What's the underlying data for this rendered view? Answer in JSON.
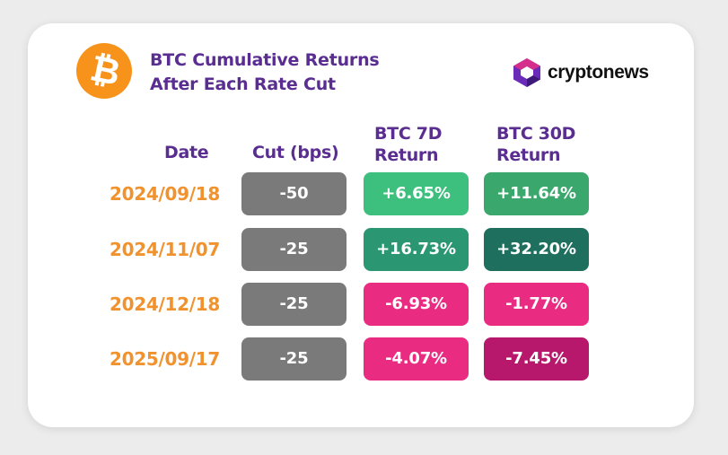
{
  "header": {
    "title_line1": "BTC Cumulative Returns",
    "title_line2": "After Each Rate Cut",
    "logo_icon": "bitcoin-icon",
    "brand_name": "cryptonews",
    "brand_icon": "cryptonews-logo-icon"
  },
  "table": {
    "headers": {
      "date": "Date",
      "cut": "Cut (bps)",
      "btc7d_line1": "BTC 7D",
      "btc7d_line2": "Return",
      "btc30d_line1": "BTC 30D",
      "btc30d_line2": "Return"
    },
    "rows": [
      {
        "date": "2024/09/18",
        "cut": "-50",
        "btc7d": "+6.65%",
        "btc30d": "+11.64%"
      },
      {
        "date": "2024/11/07",
        "cut": "-25",
        "btc7d": "+16.73%",
        "btc30d": "+32.20%"
      },
      {
        "date": "2024/12/18",
        "cut": "-25",
        "btc7d": "-6.93%",
        "btc30d": "-1.77%"
      },
      {
        "date": "2025/09/17",
        "cut": "-25",
        "btc7d": "-4.07%",
        "btc30d": "-7.45%"
      }
    ]
  },
  "colors": {
    "title": "#5a2d91",
    "date_text": "#f0922d",
    "bitcoin_orange": "#f7931a",
    "cut_cell": "#7a7a7a",
    "cells": [
      {
        "btc7d": "#3dbf7e",
        "btc30d": "#3aa86d"
      },
      {
        "btc7d": "#2a9672",
        "btc30d": "#1f6f5e"
      },
      {
        "btc7d": "#ea2b82",
        "btc30d": "#ea2b82"
      },
      {
        "btc7d": "#ea2b82",
        "btc30d": "#b8186b"
      }
    ]
  }
}
